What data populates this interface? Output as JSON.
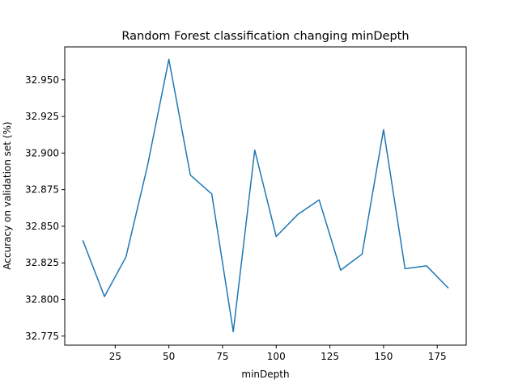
{
  "chart_data": {
    "type": "line",
    "title": "Random Forest classification changing minDepth",
    "xlabel": "minDepth",
    "ylabel": "Accuracy on validation set (%)",
    "xlim": [
      1.5,
      188.5
    ],
    "ylim": [
      32.7688,
      32.9725
    ],
    "xticks": [
      25,
      50,
      75,
      100,
      125,
      150,
      175
    ],
    "xtick_labels": [
      "25",
      "50",
      "75",
      "100",
      "125",
      "150",
      "175"
    ],
    "yticks": [
      32.775,
      32.8,
      32.825,
      32.85,
      32.875,
      32.9,
      32.925,
      32.95
    ],
    "ytick_labels": [
      "32.775",
      "32.800",
      "32.825",
      "32.850",
      "32.875",
      "32.900",
      "32.925",
      "32.950"
    ],
    "grid": false,
    "series": [
      {
        "name": "accuracy",
        "color": "#1f77b4",
        "x": [
          10,
          20,
          30,
          40,
          50,
          60,
          70,
          80,
          90,
          100,
          110,
          120,
          130,
          140,
          150,
          160,
          170,
          180
        ],
        "y": [
          32.84,
          32.802,
          32.829,
          32.891,
          32.964,
          32.885,
          32.872,
          32.778,
          32.902,
          32.843,
          32.858,
          32.868,
          32.82,
          32.831,
          32.916,
          32.821,
          32.823,
          32.808
        ]
      }
    ]
  }
}
